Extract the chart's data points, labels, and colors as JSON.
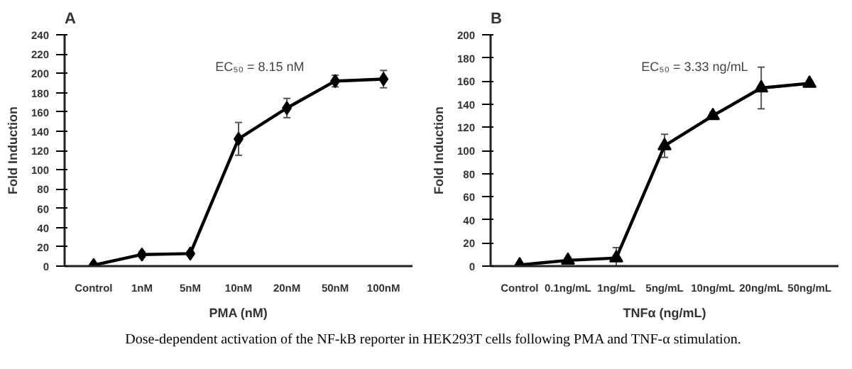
{
  "chart_data": [
    {
      "type": "line",
      "title": "A",
      "xlabel": "PMA (nM)",
      "ylabel": "Fold Induction",
      "categories": [
        "Control",
        "1nM",
        "5nM",
        "10nM",
        "20nM",
        "50nM",
        "100nM"
      ],
      "series": [
        {
          "color": "#000000",
          "values": [
            1,
            12,
            13,
            132,
            164,
            192,
            194
          ],
          "errors": [
            2,
            3,
            2,
            17,
            10,
            6,
            9
          ]
        }
      ],
      "ylim": [
        0,
        240
      ],
      "yticks": [
        0,
        20,
        40,
        60,
        80,
        100,
        120,
        140,
        160,
        180,
        200,
        220,
        240
      ],
      "marker": "diamond",
      "line_style": "solid",
      "grid": false,
      "annotations": [
        "EC₅₀ = 8.15 nM",
        "Dose-dependent activation of the NF-kB reporter in HEK293T cells following PMA and TNF-α stimulation."
      ]
    },
    {
      "type": "line",
      "title": "B",
      "xlabel": "TNFα (ng/mL)",
      "ylabel": "Fold Induction",
      "categories": [
        "Control",
        "0.1ng/mL",
        "1ng/mL",
        "5ng/mL",
        "10ng/mL",
        "20ng/mL",
        "50ng/mL"
      ],
      "series": [
        {
          "color": "#000000",
          "values": [
            1,
            5,
            7,
            104,
            130,
            154,
            158
          ],
          "errors": [
            2,
            2,
            9,
            10,
            3,
            18,
            2
          ]
        }
      ],
      "ylim": [
        0,
        200
      ],
      "yticks": [
        0,
        20,
        40,
        60,
        80,
        100,
        120,
        140,
        160,
        180,
        200
      ],
      "marker": "triangle",
      "line_style": "solid",
      "grid": false,
      "annotations": [
        "EC₅₀ = 3.33 ng/mL"
      ]
    }
  ]
}
